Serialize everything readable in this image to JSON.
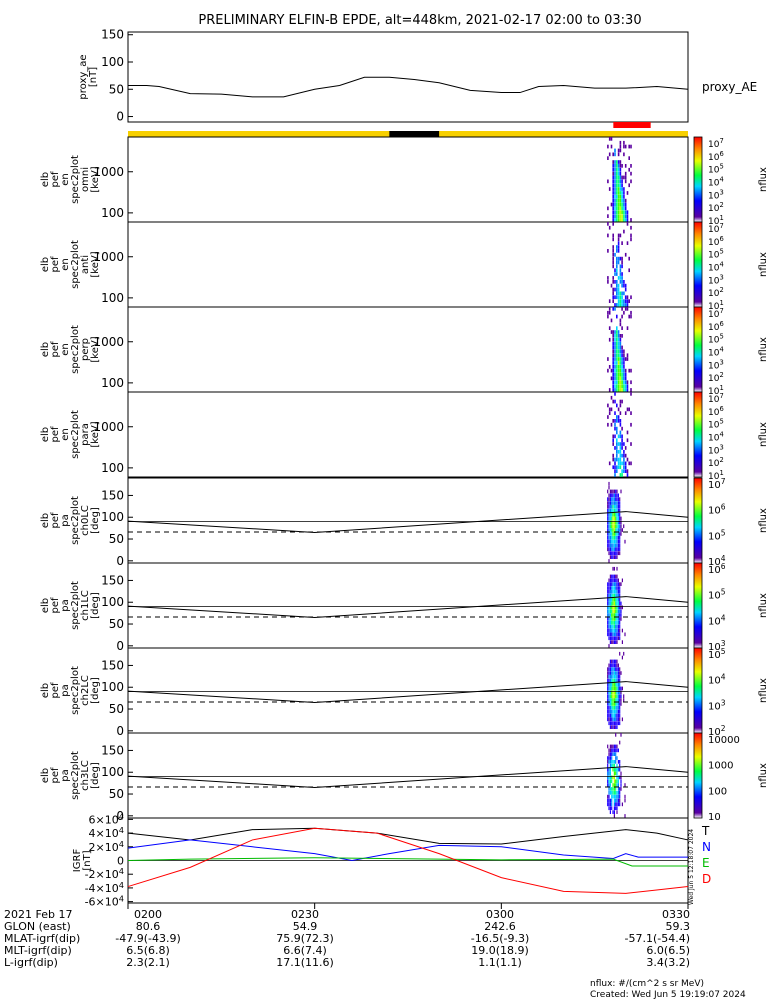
{
  "title": "PRELIMINARY ELFIN-B EPDE, alt=448km, 2021-02-17 02:00 to 03:30",
  "footer": {
    "units": "nflux: #/(cm^2 s sr MeV)",
    "created": "Created: Wed Jun  5 19:19:07 2024",
    "side_note": "Wed Jun  5 12:18:07 2024"
  },
  "ephemeris": {
    "labels": [
      "2021 Feb 17",
      "GLON (east)",
      "MLAT-igrf(dip)",
      "MLT-igrf(dip)",
      "L-igrf(dip)"
    ],
    "columns": [
      {
        "time": "0200",
        "glon": "80.6",
        "mlat": "-47.9(-43.9)",
        "mlt": "6.5(6.8)",
        "l": "2.3(2.1)"
      },
      {
        "time": "0230",
        "glon": "54.9",
        "mlat": "75.9(72.3)",
        "mlt": "6.6(7.4)",
        "l": "17.1(11.6)"
      },
      {
        "time": "0300",
        "glon": "242.6",
        "mlat": "-16.5(-9.3)",
        "mlt": "19.0(18.9)",
        "l": "1.1(1.1)"
      },
      {
        "time": "0330",
        "glon": "59.3",
        "mlat": "-57.1(-54.4)",
        "mlt": "6.0(6.5)",
        "l": "3.4(3.2)"
      }
    ]
  },
  "chart_data": [
    {
      "type": "line",
      "ylabel": [
        "proxy_ae",
        "[nT]"
      ],
      "legend": "proxy_AE",
      "ylim": [
        -10,
        155
      ],
      "yticks": [
        "0",
        "50",
        "100",
        "150"
      ],
      "x_minutes": [
        0,
        3,
        5,
        10,
        15,
        20,
        25,
        30,
        34,
        38,
        42,
        46,
        50,
        55,
        60,
        63,
        66,
        70,
        75,
        80,
        85,
        90
      ],
      "values": [
        57,
        57,
        55,
        42,
        41,
        36,
        36,
        50,
        57,
        72,
        72,
        68,
        62,
        48,
        44,
        44,
        55,
        57,
        52,
        52,
        55,
        50
      ]
    },
    {
      "type": "bar-strip",
      "description_colors": {
        "day": "#f7d000",
        "night": "#000000",
        "science_zone": "#ff0000"
      },
      "night_minutes": [
        42,
        50
      ],
      "science_zone_minutes": [
        78,
        84
      ]
    },
    {
      "type": "heatmap",
      "ylabel": [
        "elb",
        "pef",
        "en",
        "spec2plot",
        "omni",
        "[keV]"
      ],
      "yticks": [
        "100",
        "1000"
      ],
      "zlabel": "nflux",
      "cbar_ticks": [
        "10^1",
        "10^2",
        "10^3",
        "10^4",
        "10^5",
        "10^6",
        "10^7"
      ],
      "active_minutes": [
        77,
        81
      ]
    },
    {
      "type": "heatmap",
      "ylabel": [
        "elb",
        "pef",
        "en",
        "spec2plot",
        "anti",
        "[keV]"
      ],
      "yticks": [
        "100",
        "1000"
      ],
      "zlabel": "nflux",
      "cbar_ticks": [
        "10^1",
        "10^2",
        "10^3",
        "10^4",
        "10^5",
        "10^6",
        "10^7"
      ],
      "active_minutes": [
        77,
        81
      ]
    },
    {
      "type": "heatmap",
      "ylabel": [
        "elb",
        "pef",
        "en",
        "spec2plot",
        "perp",
        "[keV]"
      ],
      "yticks": [
        "100",
        "1000"
      ],
      "zlabel": "nflux",
      "cbar_ticks": [
        "10^1",
        "10^2",
        "10^3",
        "10^4",
        "10^5",
        "10^6",
        "10^7"
      ],
      "active_minutes": [
        77,
        81
      ]
    },
    {
      "type": "heatmap",
      "ylabel": [
        "elb",
        "pef",
        "en",
        "spec2plot",
        "para",
        "[keV]"
      ],
      "yticks": [
        "100",
        "1000"
      ],
      "zlabel": "nflux",
      "cbar_ticks": [
        "10^1",
        "10^2",
        "10^3",
        "10^4",
        "10^5",
        "10^6",
        "10^7"
      ],
      "active_minutes": [
        77,
        81
      ]
    },
    {
      "type": "heatmap",
      "ylabel": [
        "elb",
        "pef",
        "pa",
        "spec2plot",
        "ch0LC",
        "[deg]"
      ],
      "yticks": [
        "0",
        "50",
        "100",
        "150"
      ],
      "zlabel": "nflux",
      "cbar_ticks": [
        "10^4",
        "10^5",
        "10^6",
        "10^7"
      ],
      "lc_minutes": [
        0,
        30,
        80,
        90
      ],
      "lc_solid": [
        91,
        65,
        113,
        100
      ],
      "lc_dashed": 66,
      "active_minutes": [
        77,
        80
      ]
    },
    {
      "type": "heatmap",
      "ylabel": [
        "elb",
        "pef",
        "pa",
        "spec2plot",
        "ch1LC",
        "[deg]"
      ],
      "yticks": [
        "0",
        "50",
        "100",
        "150"
      ],
      "zlabel": "nflux",
      "cbar_ticks": [
        "10^3",
        "10^4",
        "10^5",
        "10^6"
      ],
      "lc_minutes": [
        0,
        30,
        80,
        90
      ],
      "lc_solid": [
        91,
        65,
        113,
        100
      ],
      "lc_dashed": 66,
      "active_minutes": [
        77,
        80
      ]
    },
    {
      "type": "heatmap",
      "ylabel": [
        "elb",
        "pef",
        "pa",
        "spec2plot",
        "ch2LC",
        "[deg]"
      ],
      "yticks": [
        "0",
        "50",
        "100",
        "150"
      ],
      "zlabel": "nflux",
      "cbar_ticks": [
        "10^2",
        "10^3",
        "10^4",
        "10^5"
      ],
      "lc_minutes": [
        0,
        30,
        80,
        90
      ],
      "lc_solid": [
        91,
        65,
        113,
        100
      ],
      "lc_dashed": 66,
      "active_minutes": [
        77,
        80
      ]
    },
    {
      "type": "heatmap",
      "ylabel": [
        "elb",
        "pef",
        "pa",
        "spec2plot",
        "ch3LC",
        "[deg]"
      ],
      "yticks": [
        "0",
        "50",
        "100",
        "150"
      ],
      "zlabel": "nflux",
      "cbar_ticks": [
        "10",
        "100",
        "1000",
        "10000"
      ],
      "lc_minutes": [
        0,
        30,
        80,
        90
      ],
      "lc_solid": [
        91,
        65,
        113,
        100
      ],
      "lc_dashed": 66,
      "active_minutes": [
        77,
        80
      ]
    },
    {
      "type": "line",
      "ylabel": [
        "IGRF",
        "[nT]"
      ],
      "ylim": [
        -62000,
        62000
      ],
      "yticks": [
        "-6×10^4",
        "-4×10^4",
        "-2×10^4",
        "0",
        "2×10^4",
        "4×10^4",
        "6×10^4"
      ],
      "series": [
        {
          "name": "T",
          "color": "#000000",
          "x": [
            0,
            10,
            20,
            30,
            40,
            50,
            60,
            70,
            80,
            85,
            90
          ],
          "values": [
            40000,
            30000,
            45000,
            47000,
            40000,
            25000,
            24000,
            35000,
            45000,
            40000,
            30000
          ]
        },
        {
          "name": "N",
          "color": "#0000ff",
          "x": [
            0,
            10,
            20,
            30,
            36,
            42,
            50,
            60,
            70,
            78,
            80,
            82,
            90
          ],
          "values": [
            18000,
            30000,
            20000,
            10000,
            0,
            10000,
            22000,
            20000,
            8000,
            3000,
            10000,
            5000,
            5000
          ]
        },
        {
          "name": "E",
          "color": "#00bb00",
          "x": [
            0,
            10,
            30,
            50,
            60,
            70,
            78,
            81,
            90
          ],
          "values": [
            0,
            2000,
            4000,
            2000,
            1000,
            1500,
            2000,
            -8000,
            -8000
          ]
        },
        {
          "name": "D",
          "color": "#ff0000",
          "x": [
            0,
            10,
            20,
            30,
            40,
            50,
            60,
            70,
            80,
            90
          ],
          "values": [
            -38000,
            -10000,
            30000,
            47000,
            40000,
            10000,
            -25000,
            -45000,
            -48000,
            -38000
          ]
        }
      ]
    }
  ]
}
